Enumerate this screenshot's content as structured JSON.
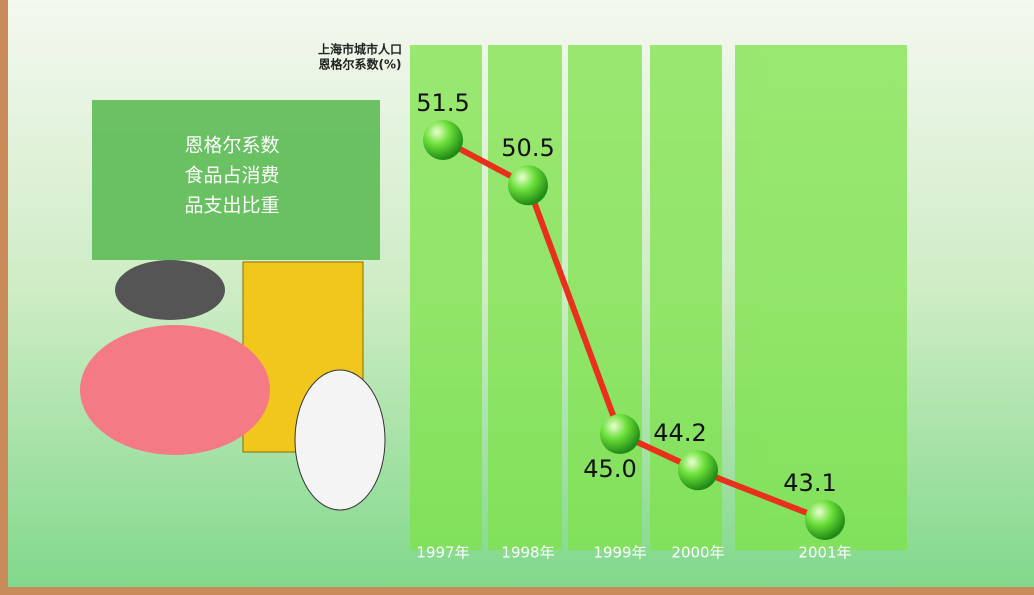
{
  "chart_data": {
    "type": "line",
    "title": [
      "上海市城市人口",
      "恩格尔系数(%)"
    ],
    "note": [
      "恩格尔系数",
      "食品占消费",
      "品支出比重"
    ],
    "categories": [
      "1997年",
      "1998年",
      "1999年",
      "2000年",
      "2001年"
    ],
    "series": [
      {
        "color": "#e8301c",
        "values": [
          51.5,
          50.5,
          45.0,
          44.2,
          43.1
        ],
        "value_labels": [
          "51.5",
          "50.5",
          "45.0",
          "44.2",
          "43.1"
        ]
      }
    ]
  }
}
